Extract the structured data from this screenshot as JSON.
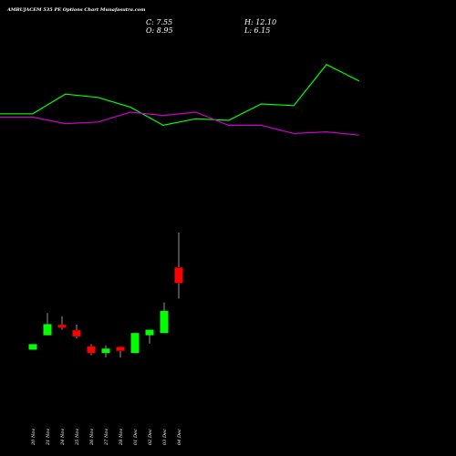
{
  "header": {
    "title": "AMBUJACEM 535 PE Options Chart Munafasutra.com",
    "close_label": "C: 7.55",
    "open_label": "O: 8.95",
    "high_label": "H: 12.10",
    "low_label": "L: 6.15"
  },
  "colors": {
    "background": "#000000",
    "up": "#00ff00",
    "down": "#ff0000",
    "upper_line": "#00ff00",
    "lower_line": "#cc00cc",
    "wick": "#ffffff"
  },
  "chart_data": {
    "type": "candlestick",
    "title": "AMBUJACEM 535 PE Options Chart Munafasutra.com",
    "x": [
      "20 Nov",
      "21 Nov",
      "24 Nov",
      "25 Nov",
      "26 Nov",
      "27 Nov",
      "28 Nov",
      "01 Dec",
      "02 Dec",
      "03 Dec",
      "04 Dec"
    ],
    "candles": [
      {
        "date": "20 Nov",
        "open": 1.55,
        "close": 2.05,
        "high": 2.05,
        "low": 1.55
      },
      {
        "date": "21 Nov",
        "open": 2.85,
        "close": 3.85,
        "high": 4.85,
        "low": 2.85
      },
      {
        "date": "24 Nov",
        "open": 3.8,
        "close": 3.55,
        "high": 4.55,
        "low": 3.35
      },
      {
        "date": "25 Nov",
        "open": 3.3,
        "close": 2.75,
        "high": 3.8,
        "low": 2.55
      },
      {
        "date": "26 Nov",
        "open": 1.85,
        "close": 1.25,
        "high": 2.05,
        "low": 1.05
      },
      {
        "date": "27 Nov",
        "open": 1.25,
        "close": 1.65,
        "high": 1.95,
        "low": 0.85
      },
      {
        "date": "28 Nov",
        "open": 1.8,
        "close": 1.45,
        "high": 1.85,
        "low": 0.85
      },
      {
        "date": "01 Dec",
        "open": 1.25,
        "close": 3.05,
        "high": 3.05,
        "low": 1.25
      },
      {
        "date": "02 Dec",
        "open": 2.85,
        "close": 3.35,
        "high": 3.35,
        "low": 2.1
      },
      {
        "date": "03 Dec",
        "open": 3.05,
        "close": 5.05,
        "high": 5.8,
        "low": 3.05
      },
      {
        "date": "04 Dec",
        "open": 8.95,
        "close": 7.55,
        "high": 12.1,
        "low": 6.15
      }
    ],
    "overlay_lines": [
      {
        "color": "#00ff00",
        "values": [
          0.64,
          0.64,
          0.76,
          0.74,
          0.68,
          0.57,
          0.61,
          0.6,
          0.7,
          0.69,
          0.94,
          0.84
        ]
      },
      {
        "color": "#cc00cc",
        "values": [
          0.62,
          0.62,
          0.58,
          0.59,
          0.65,
          0.63,
          0.65,
          0.57,
          0.57,
          0.52,
          0.53,
          0.51
        ]
      }
    ]
  }
}
